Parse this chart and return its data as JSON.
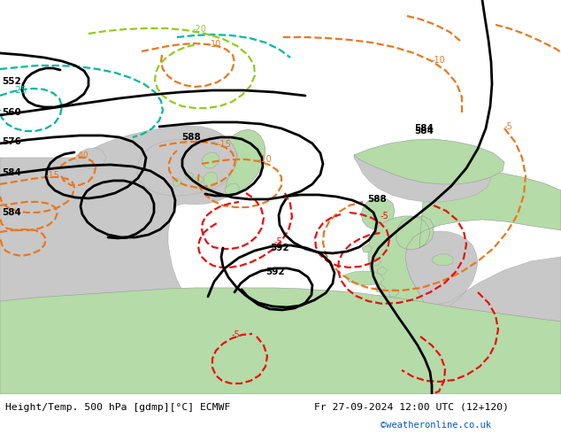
{
  "title_left": "Height/Temp. 500 hPa [gdmp][°C] ECMWF",
  "title_right": "Fr 27-09-2024 12:00 UTC (12+120)",
  "watermark": "©weatheronline.co.uk",
  "bg_color": "#b5dba8",
  "sea_color": "#c8c8c8",
  "coast_color": "#999999",
  "z500_color": "#000000",
  "orange_color": "#e87820",
  "cyan_color": "#00b8a0",
  "lime_color": "#90cc20",
  "red_color": "#e81010",
  "bottom_bar_color": "#ffffff",
  "watermark_color": "#0055cc"
}
